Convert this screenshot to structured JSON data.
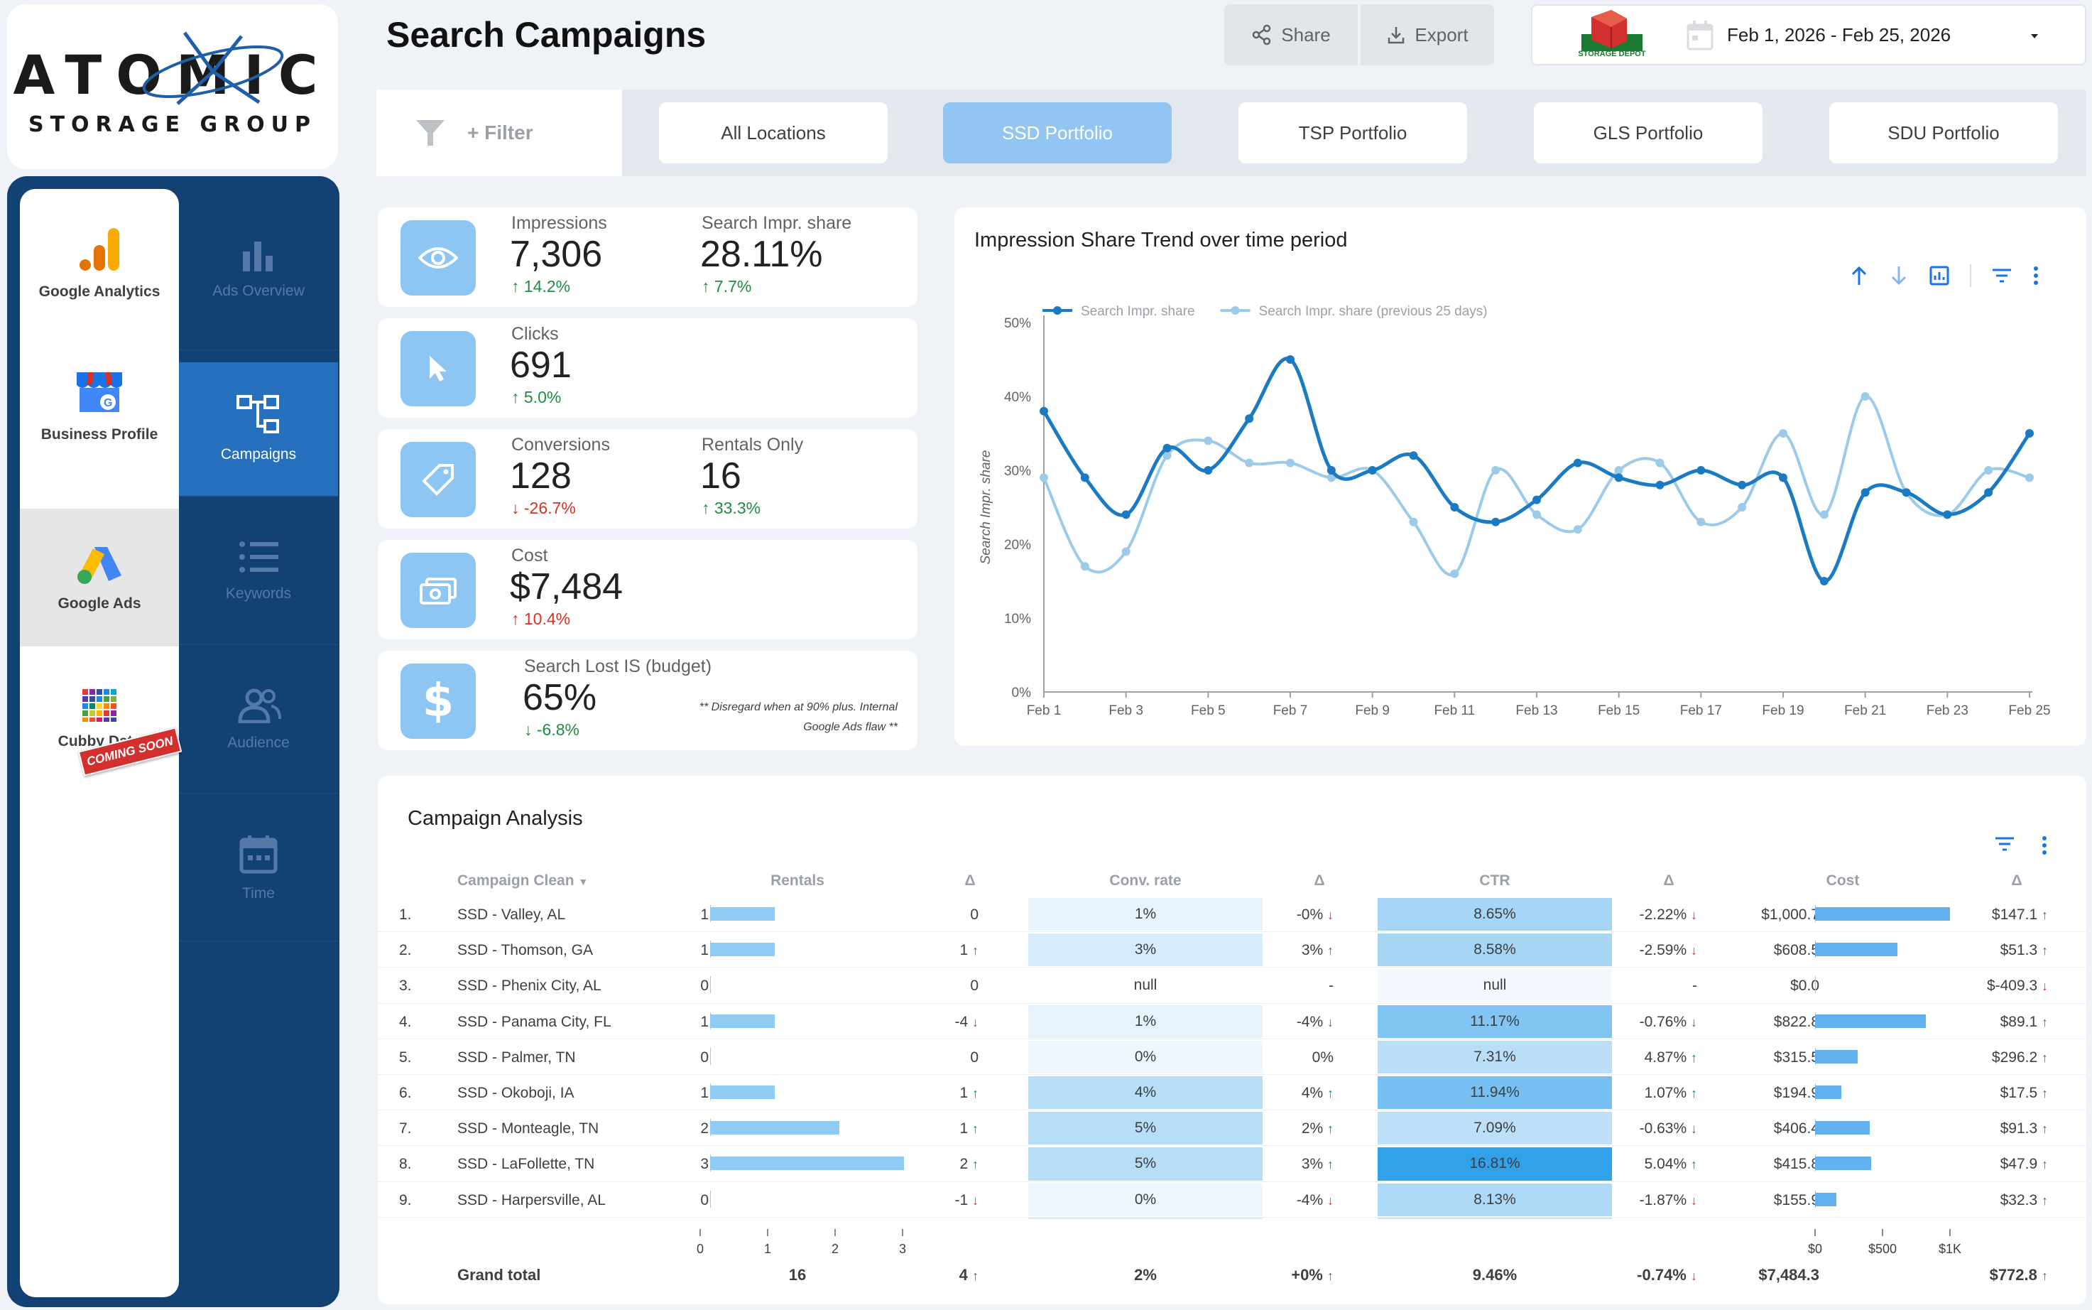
{
  "brand": {
    "name": "ATOMIC",
    "tagline": "STORAGE GROUP"
  },
  "page_title": "Search Campaigns",
  "toolbar": {
    "share": "Share",
    "export": "Export"
  },
  "date_range": {
    "partner_logo_text": "STORAGE DEPOT",
    "value": "Feb 1, 2026 - Feb 25, 2026"
  },
  "sources": [
    {
      "label": "Google Analytics"
    },
    {
      "label": "Business Profile"
    },
    {
      "label": "Google Ads"
    },
    {
      "label": "Cubby Data",
      "badge": "COMING SOON"
    }
  ],
  "nav": [
    {
      "label": "Ads Overview"
    },
    {
      "label": "Campaigns"
    },
    {
      "label": "Keywords"
    },
    {
      "label": "Audience"
    },
    {
      "label": "Time"
    }
  ],
  "filter": {
    "label": "+ Filter"
  },
  "tabs": [
    "All Locations",
    "SSD Portfolio",
    "TSP Portfolio",
    "GLS Portfolio",
    "SDU Portfolio"
  ],
  "kpis": {
    "impressions": {
      "label": "Impressions",
      "value": "7,306",
      "delta": "14.2%"
    },
    "impr_share": {
      "label": "Search Impr. share",
      "value": "28.11%",
      "delta": "7.7%"
    },
    "clicks": {
      "label": "Clicks",
      "value": "691",
      "delta": "5.0%"
    },
    "conversions": {
      "label": "Conversions",
      "value": "128",
      "delta": "-26.7%"
    },
    "rentals": {
      "label": "Rentals Only",
      "value": "16",
      "delta": "33.3%"
    },
    "cost": {
      "label": "Cost",
      "value": "$7,484",
      "delta": "10.4%"
    },
    "lost_is": {
      "label": "Search Lost IS (budget)",
      "value": "65%",
      "delta": "-6.8%",
      "note1": "** Disregard when at 90% plus. Internal",
      "note2": "Google Ads flaw **"
    }
  },
  "chart_title": "Impression Share Trend over time period",
  "chart_data": {
    "type": "line",
    "ylabel": "Search Impr. share",
    "ylim": [
      0,
      50
    ],
    "yticks": [
      "0%",
      "10%",
      "20%",
      "30%",
      "40%",
      "50%"
    ],
    "xticks": [
      "Feb 1",
      "Feb 3",
      "Feb 5",
      "Feb 7",
      "Feb 9",
      "Feb 11",
      "Feb 13",
      "Feb 15",
      "Feb 17",
      "Feb 19",
      "Feb 21",
      "Feb 23",
      "Feb 25"
    ],
    "x": [
      "Feb 1",
      "Feb 2",
      "Feb 3",
      "Feb 4",
      "Feb 5",
      "Feb 6",
      "Feb 7",
      "Feb 8",
      "Feb 9",
      "Feb 10",
      "Feb 11",
      "Feb 12",
      "Feb 13",
      "Feb 14",
      "Feb 15",
      "Feb 16",
      "Feb 17",
      "Feb 18",
      "Feb 19",
      "Feb 20",
      "Feb 21",
      "Feb 22",
      "Feb 23",
      "Feb 24",
      "Feb 25"
    ],
    "legend_position": "top-left",
    "series": [
      {
        "name": "Search Impr. share",
        "color": "#1a7ac2",
        "values": [
          38,
          29,
          24,
          33,
          30,
          37,
          45,
          30,
          30,
          32,
          25,
          23,
          26,
          31,
          29,
          28,
          30,
          28,
          29,
          15,
          27,
          27,
          24,
          27,
          35
        ]
      },
      {
        "name": "Search Impr. share (previous 25 days)",
        "color": "#9ccbea",
        "values": [
          29,
          17,
          19,
          32,
          34,
          31,
          31,
          29,
          30,
          23,
          16,
          30,
          24,
          22,
          30,
          31,
          23,
          25,
          35,
          24,
          40,
          27,
          24,
          30,
          29
        ]
      }
    ]
  },
  "table": {
    "title": "Campaign Analysis",
    "headers": {
      "campaign": "Campaign Clean",
      "rentals": "Rentals",
      "delta": "Δ",
      "conv_rate": "Conv. rate",
      "ctr": "CTR",
      "cost": "Cost"
    },
    "rows": [
      {
        "n": "1.",
        "name": "SSD - Valley, AL",
        "rentals": 1,
        "d1": "0",
        "d1dir": "",
        "conv": "1%",
        "d2": "-0%",
        "d2dir": "dn",
        "ctr": "8.65%",
        "ctr_v": 8.65,
        "d3": "-2.22%",
        "d3dir": "dn",
        "cost": "$1,000.7",
        "cost_v": 1000.7,
        "d4": "$147.1",
        "d4dir": "up"
      },
      {
        "n": "2.",
        "name": "SSD - Thomson, GA",
        "rentals": 1,
        "d1": "1",
        "d1dir": "up",
        "conv": "3%",
        "d2": "3%",
        "d2dir": "up",
        "ctr": "8.58%",
        "ctr_v": 8.58,
        "d3": "-2.59%",
        "d3dir": "dn",
        "cost": "$608.5",
        "cost_v": 608.5,
        "d4": "$51.3",
        "d4dir": "up"
      },
      {
        "n": "3.",
        "name": "SSD - Phenix City, AL",
        "rentals": 0,
        "d1": "0",
        "d1dir": "",
        "conv": "null",
        "d2": "-",
        "d2dir": "",
        "ctr": "null",
        "ctr_v": null,
        "d3": "-",
        "d3dir": "",
        "cost": "$0.0",
        "cost_v": 0,
        "d4": "$-409.3",
        "d4dir": "dn"
      },
      {
        "n": "4.",
        "name": "SSD - Panama City, FL",
        "rentals": 1,
        "d1": "-4",
        "d1dir": "dn",
        "conv": "1%",
        "d2": "-4%",
        "d2dir": "dn",
        "ctr": "11.17%",
        "ctr_v": 11.17,
        "d3": "-0.76%",
        "d3dir": "dn",
        "cost": "$822.8",
        "cost_v": 822.8,
        "d4": "$89.1",
        "d4dir": "up"
      },
      {
        "n": "5.",
        "name": "SSD - Palmer, TN",
        "rentals": 0,
        "d1": "0",
        "d1dir": "",
        "conv": "0%",
        "d2": "0%",
        "d2dir": "",
        "ctr": "7.31%",
        "ctr_v": 7.31,
        "d3": "4.87%",
        "d3dir": "up",
        "cost": "$315.5",
        "cost_v": 315.5,
        "d4": "$296.2",
        "d4dir": "up"
      },
      {
        "n": "6.",
        "name": "SSD - Okoboji, IA",
        "rentals": 1,
        "d1": "1",
        "d1dir": "up",
        "conv": "4%",
        "d2": "4%",
        "d2dir": "up",
        "ctr": "11.94%",
        "ctr_v": 11.94,
        "d3": "1.07%",
        "d3dir": "up",
        "cost": "$194.9",
        "cost_v": 194.9,
        "d4": "$17.5",
        "d4dir": "up"
      },
      {
        "n": "7.",
        "name": "SSD - Monteagle, TN",
        "rentals": 2,
        "d1": "1",
        "d1dir": "up",
        "conv": "5%",
        "d2": "2%",
        "d2dir": "up",
        "ctr": "7.09%",
        "ctr_v": 7.09,
        "d3": "-0.63%",
        "d3dir": "dn",
        "cost": "$406.4",
        "cost_v": 406.4,
        "d4": "$91.3",
        "d4dir": "up"
      },
      {
        "n": "8.",
        "name": "SSD - LaFollette, TN",
        "rentals": 3,
        "d1": "2",
        "d1dir": "up",
        "conv": "5%",
        "d2": "3%",
        "d2dir": "up",
        "ctr": "16.81%",
        "ctr_v": 16.81,
        "d3": "5.04%",
        "d3dir": "up",
        "cost": "$415.8",
        "cost_v": 415.8,
        "d4": "$47.9",
        "d4dir": "up"
      },
      {
        "n": "9.",
        "name": "SSD - Harpersville, AL",
        "rentals": 0,
        "d1": "-1",
        "d1dir": "dn",
        "conv": "0%",
        "d2": "-4%",
        "d2dir": "dn",
        "ctr": "8.13%",
        "ctr_v": 8.13,
        "d3": "-1.87%",
        "d3dir": "dn",
        "cost": "$155.9",
        "cost_v": 155.9,
        "d4": "$32.3",
        "d4dir": "up"
      }
    ],
    "rentals_axis": [
      "0",
      "1",
      "2",
      "3"
    ],
    "cost_axis": [
      "$0",
      "$500",
      "$1K"
    ],
    "total": {
      "label": "Grand total",
      "rentals": "16",
      "d1": "4",
      "conv": "2%",
      "d2": "+0%",
      "ctr": "9.46%",
      "d3": "-0.74%",
      "cost": "$7,484.3",
      "d4": "$772.8"
    }
  }
}
